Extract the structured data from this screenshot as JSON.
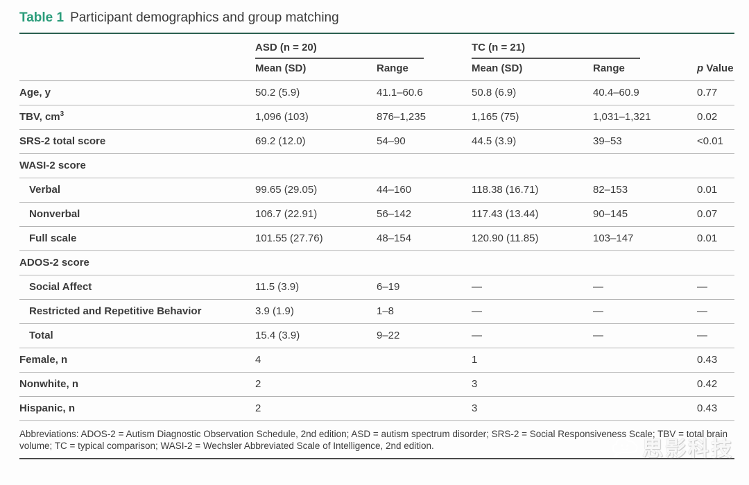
{
  "title": {
    "table_label": "Table 1",
    "text": "Participant demographics and group matching"
  },
  "colors": {
    "accent_green": "#2a9c7a",
    "top_rule_teal": "#2b5f50",
    "bottom_rule_dark": "#4a4a4a",
    "row_separator": "#b3b3b3",
    "text": "#3b3b3b"
  },
  "table": {
    "groups": [
      {
        "label": "ASD (n = 20)"
      },
      {
        "label": "TC (n = 21)"
      }
    ],
    "columns": [
      "Mean (SD)",
      "Range",
      "Mean (SD)",
      "Range"
    ],
    "p_header": {
      "italic": "p",
      "rest": " Value"
    },
    "rows": [
      {
        "label": "Age, y",
        "sup": "",
        "indent": false,
        "section": false,
        "cells": [
          "50.2 (5.9)",
          "41.1–60.6",
          "50.8 (6.9)",
          "40.4–60.9",
          "0.77"
        ]
      },
      {
        "label": "TBV, cm",
        "sup": "3",
        "indent": false,
        "section": false,
        "cells": [
          "1,096 (103)",
          "876–1,235",
          "1,165 (75)",
          "1,031–1,321",
          "0.02"
        ]
      },
      {
        "label": "SRS-2 total score",
        "sup": "",
        "indent": false,
        "section": false,
        "cells": [
          "69.2 (12.0)",
          "54–90",
          "44.5 (3.9)",
          "39–53",
          "<0.01"
        ]
      },
      {
        "label": "WASI-2 score",
        "sup": "",
        "indent": false,
        "section": true,
        "cells": [
          "",
          "",
          "",
          "",
          ""
        ]
      },
      {
        "label": "Verbal",
        "sup": "",
        "indent": true,
        "section": false,
        "cells": [
          "99.65 (29.05)",
          "44–160",
          "118.38 (16.71)",
          "82–153",
          "0.01"
        ]
      },
      {
        "label": "Nonverbal",
        "sup": "",
        "indent": true,
        "section": false,
        "cells": [
          "106.7 (22.91)",
          "56–142",
          "117.43 (13.44)",
          "90–145",
          "0.07"
        ]
      },
      {
        "label": "Full scale",
        "sup": "",
        "indent": true,
        "section": false,
        "cells": [
          "101.55 (27.76)",
          "48–154",
          "120.90 (11.85)",
          "103–147",
          "0.01"
        ]
      },
      {
        "label": "ADOS-2 score",
        "sup": "",
        "indent": false,
        "section": true,
        "cells": [
          "",
          "",
          "",
          "",
          ""
        ]
      },
      {
        "label": "Social Affect",
        "sup": "",
        "indent": true,
        "section": false,
        "cells": [
          "11.5 (3.9)",
          "6–19",
          "—",
          "—",
          "—"
        ]
      },
      {
        "label": "Restricted and Repetitive Behavior",
        "sup": "",
        "indent": true,
        "section": false,
        "cells": [
          "3.9 (1.9)",
          "1–8",
          "—",
          "—",
          "—"
        ]
      },
      {
        "label": "Total",
        "sup": "",
        "indent": true,
        "section": false,
        "cells": [
          "15.4 (3.9)",
          "9–22",
          "—",
          "—",
          "—"
        ]
      },
      {
        "label": "Female, n",
        "sup": "",
        "indent": false,
        "section": false,
        "cells": [
          "4",
          "",
          "1",
          "",
          "0.43"
        ]
      },
      {
        "label": "Nonwhite, n",
        "sup": "",
        "indent": false,
        "section": false,
        "cells": [
          "2",
          "",
          "3",
          "",
          "0.42"
        ]
      },
      {
        "label": "Hispanic, n",
        "sup": "",
        "indent": false,
        "section": false,
        "cells": [
          "2",
          "",
          "3",
          "",
          "0.43"
        ]
      }
    ]
  },
  "footnote": "Abbreviations: ADOS-2 = Autism Diagnostic Observation Schedule, 2nd edition; ASD = autism spectrum disorder; SRS-2 = Social Responsiveness Scale; TBV = total brain volume; TC = typical comparison; WASI-2 = Wechsler Abbreviated Scale of Intelligence, 2nd edition.",
  "watermark": {
    "text": "思影科技"
  }
}
